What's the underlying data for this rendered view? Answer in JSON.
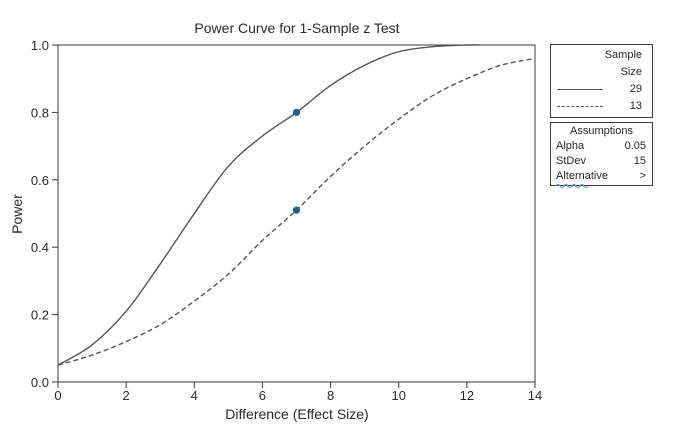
{
  "chart_data": {
    "type": "line",
    "title": "Power Curve for 1-Sample z Test",
    "xlabel": "Difference (Effect Size)",
    "ylabel": "Power",
    "xlim": [
      0,
      14
    ],
    "ylim": [
      0,
      1.0
    ],
    "x_ticks": [
      0,
      2,
      4,
      6,
      8,
      10,
      12,
      14
    ],
    "y_ticks": [
      0.0,
      0.2,
      0.4,
      0.6,
      0.8,
      1.0
    ],
    "x_tick_labels": [
      "0",
      "2",
      "4",
      "6",
      "8",
      "10",
      "12",
      "14"
    ],
    "y_tick_labels": [
      "0.0",
      "0.2",
      "0.4",
      "0.6",
      "0.8",
      "1.0"
    ],
    "grid": false,
    "legend_position": "right",
    "legend_title": [
      "Sample",
      "Size"
    ],
    "series": [
      {
        "name": "29",
        "style": "solid",
        "x": [
          0,
          1,
          2,
          3,
          4,
          5,
          6,
          7,
          8,
          9,
          10,
          11,
          12,
          12.4
        ],
        "y": [
          0.05,
          0.11,
          0.21,
          0.35,
          0.5,
          0.64,
          0.73,
          0.8,
          0.88,
          0.94,
          0.98,
          0.995,
          1.0,
          1.0
        ]
      },
      {
        "name": "13",
        "style": "dashed",
        "x": [
          0,
          1,
          2,
          3,
          4,
          5,
          6,
          7,
          8,
          9,
          10,
          11,
          12,
          13,
          14
        ],
        "y": [
          0.05,
          0.08,
          0.12,
          0.17,
          0.24,
          0.32,
          0.42,
          0.51,
          0.61,
          0.7,
          0.78,
          0.85,
          0.9,
          0.94,
          0.96
        ]
      }
    ],
    "markers": [
      {
        "x": 7,
        "y": 0.8
      },
      {
        "x": 7,
        "y": 0.51
      }
    ],
    "marker_color": "#1f5f8f",
    "line_color": "#555555",
    "assumptions": {
      "title": "Assumptions",
      "rows": [
        {
          "label": "Alpha",
          "value": "0.05"
        },
        {
          "label": "StDev",
          "value": "15"
        },
        {
          "label": "Alternative",
          "value": ">"
        }
      ]
    }
  }
}
